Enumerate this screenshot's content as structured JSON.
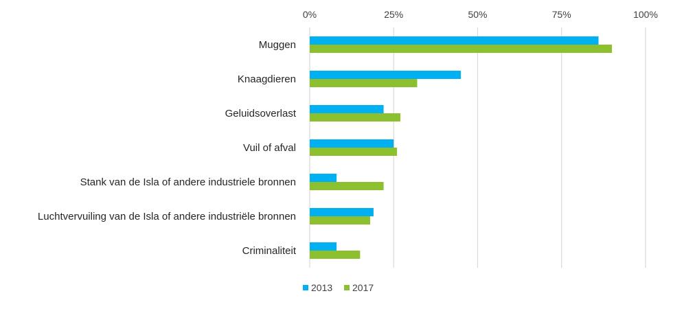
{
  "chart_data": {
    "type": "bar",
    "orientation": "horizontal",
    "categories": [
      "Muggen",
      "Knaagdieren",
      "Geluidsoverlast",
      "Vuil of afval",
      "Stank van de Isla of andere industriele bronnen",
      "Luchtvervuiling van de Isla of andere industriële bronnen",
      "Criminaliteit"
    ],
    "series": [
      {
        "name": "2013",
        "color": "#00B0F0",
        "values": [
          86,
          45,
          22,
          25,
          8,
          19,
          8
        ]
      },
      {
        "name": "2017",
        "color": "#8DC02E",
        "values": [
          90,
          32,
          27,
          26,
          22,
          18,
          15
        ]
      }
    ],
    "xlim": [
      0,
      100
    ],
    "x_ticks": [
      "0%",
      "25%",
      "50%",
      "75%",
      "100%"
    ],
    "x_axis_position": "top",
    "grid": true,
    "legend_position": "bottom",
    "title": "",
    "xlabel": "",
    "ylabel": ""
  }
}
